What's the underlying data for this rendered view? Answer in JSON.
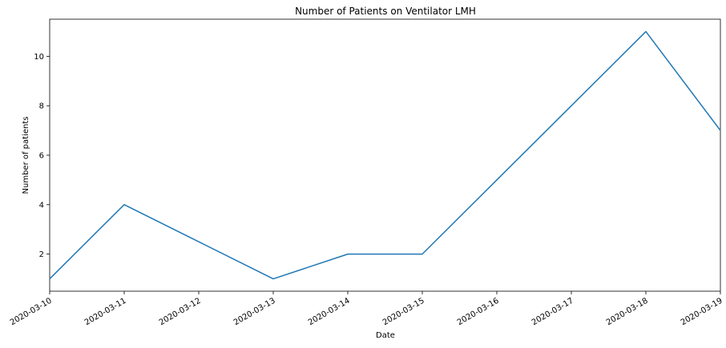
{
  "chart_data": {
    "type": "line",
    "title": "Number of Patients on Ventilator LMH",
    "xlabel": "Date",
    "ylabel": "Number of patients",
    "x": [
      "2020-03-10",
      "2020-03-11",
      "2020-03-12",
      "2020-03-13",
      "2020-03-14",
      "2020-03-15",
      "2020-03-16",
      "2020-03-17",
      "2020-03-18",
      "2020-03-19"
    ],
    "series": [
      {
        "values": [
          1,
          4,
          2.5,
          1,
          2,
          2,
          5,
          8,
          11,
          7
        ],
        "color": "#1f77b4"
      }
    ],
    "xlim": [
      "2020-03-10",
      "2020-03-19"
    ],
    "ylim": [
      0.5,
      11.5
    ],
    "yticks": [
      2,
      4,
      6,
      8,
      10
    ],
    "xtick_labels": [
      "2020-03-10",
      "2020-03-11",
      "2020-03-12",
      "2020-03-13",
      "2020-03-14",
      "2020-03-15",
      "2020-03-16",
      "2020-03-17",
      "2020-03-18",
      "2020-03-19"
    ],
    "grid": false,
    "legend": "none"
  }
}
